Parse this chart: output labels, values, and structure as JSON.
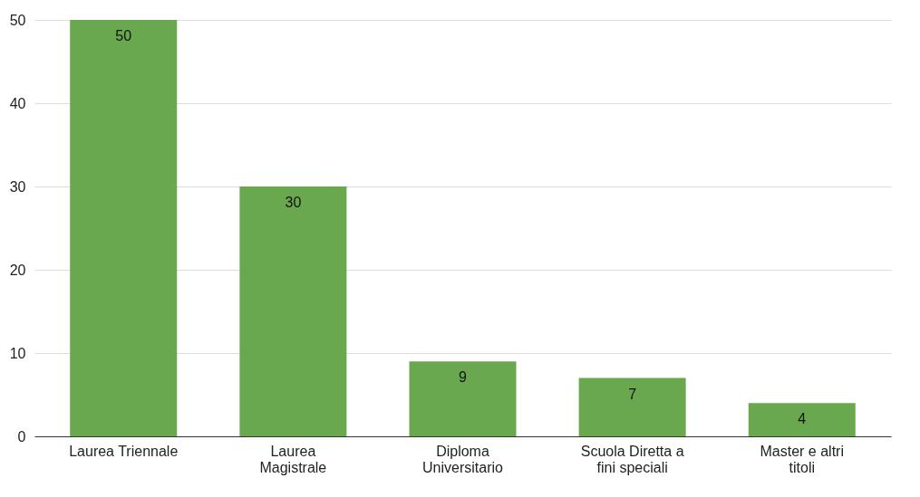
{
  "chart_data": {
    "type": "bar",
    "categories": [
      "Laurea Triennale",
      "Laurea Magistrale",
      "Diploma Universitario",
      "Scuola Diretta a fini speciali",
      "Master e altri titoli"
    ],
    "values": [
      50,
      30,
      9,
      7,
      4
    ],
    "color": "#6aa84f",
    "ylim": [
      0,
      50
    ],
    "yticks": [
      0,
      10,
      20,
      30,
      40,
      50
    ],
    "grid": "y",
    "data_labels": true
  }
}
